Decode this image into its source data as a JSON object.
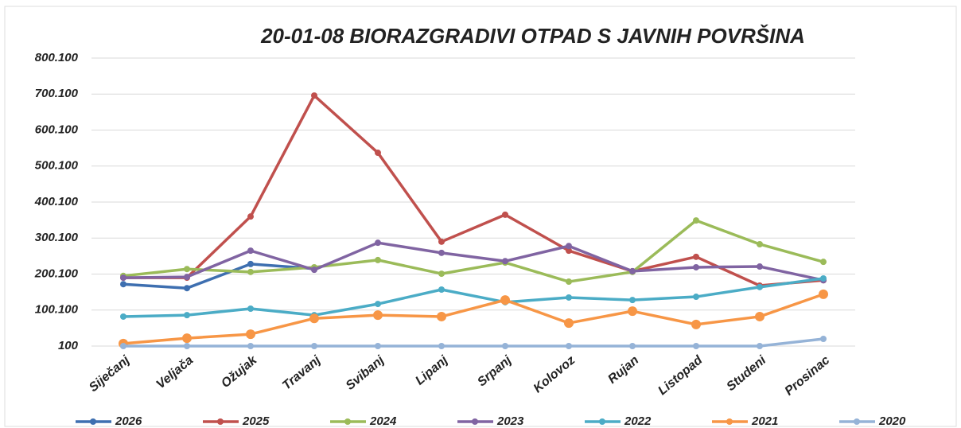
{
  "chart_data": {
    "type": "line",
    "title": "20-01-08 BIORAZGRADIVI OTPAD S JAVNIH POVRŠINA",
    "categories": [
      "Siječanj",
      "Veljača",
      "Ožujak",
      "Travanj",
      "Svibanj",
      "Lipanj",
      "Srpanj",
      "Kolovoz",
      "Rujan",
      "Listopad",
      "Studeni",
      "Prosinac"
    ],
    "ylim": [
      100,
      800100
    ],
    "yticks": [
      100,
      {
        "value": 100100,
        "label": "100.100"
      },
      {
        "value": 200100,
        "label": "200.100"
      },
      {
        "value": 300100,
        "label": "300.100"
      },
      {
        "value": 400100,
        "label": "400.100"
      },
      {
        "value": 500100,
        "label": "500.100"
      },
      {
        "value": 600100,
        "label": "600.100"
      },
      {
        "value": 700100,
        "label": "700.100"
      },
      {
        "value": 800100,
        "label": "800.100"
      }
    ],
    "grid": true,
    "legend": "bottom",
    "series": [
      {
        "name": "2026",
        "color": "#3e6fb0",
        "values": [
          172000,
          161000,
          228000,
          215000,
          null,
          null,
          null,
          null,
          null,
          null,
          null,
          null
        ]
      },
      {
        "name": "2025",
        "color": "#c0504d",
        "values": [
          190000,
          190000,
          360000,
          696000,
          537000,
          290000,
          365000,
          265000,
          208000,
          248000,
          168000,
          183000
        ]
      },
      {
        "name": "2024",
        "color": "#9bbb59",
        "values": [
          195000,
          214000,
          206000,
          219000,
          239000,
          201000,
          232000,
          179000,
          206000,
          349000,
          283000,
          234000
        ]
      },
      {
        "name": "2023",
        "color": "#8064a2",
        "values": [
          190000,
          192000,
          265000,
          212000,
          287000,
          259000,
          236000,
          278000,
          208000,
          219000,
          221000,
          183000
        ]
      },
      {
        "name": "2022",
        "color": "#4bacc6",
        "values": [
          82000,
          86000,
          104000,
          86000,
          117000,
          157000,
          122000,
          135000,
          128000,
          137000,
          164000,
          188000
        ]
      },
      {
        "name": "2021",
        "color": "#f79646",
        "values": [
          7000,
          22000,
          33000,
          77000,
          86000,
          82000,
          128000,
          64000,
          97000,
          60000,
          82000,
          144000
        ]
      },
      {
        "name": "2020",
        "color": "#95b3d7",
        "values": [
          100,
          100,
          100,
          100,
          100,
          100,
          100,
          100,
          100,
          100,
          100,
          20000
        ]
      }
    ]
  }
}
